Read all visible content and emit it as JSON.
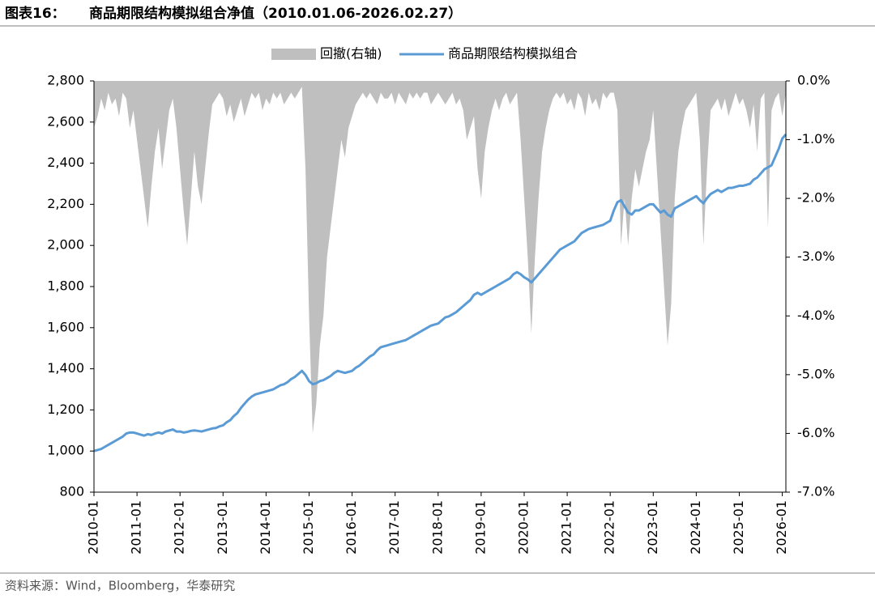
{
  "chart_data": {
    "type": "line-area",
    "title_label": "图表16：",
    "title": "商品期限结构模拟组合净值（2010.01.06-2026.02.27）",
    "source": "资料来源：Wind，Bloomberg，华泰研究",
    "x": [
      "2010-01",
      "2010-02",
      "2010-03",
      "2010-04",
      "2010-05",
      "2010-06",
      "2010-07",
      "2010-08",
      "2010-09",
      "2010-10",
      "2010-11",
      "2010-12",
      "2011-01",
      "2011-02",
      "2011-03",
      "2011-04",
      "2011-05",
      "2011-06",
      "2011-07",
      "2011-08",
      "2011-09",
      "2011-10",
      "2011-11",
      "2011-12",
      "2012-01",
      "2012-02",
      "2012-03",
      "2012-04",
      "2012-05",
      "2012-06",
      "2012-07",
      "2012-08",
      "2012-09",
      "2012-10",
      "2012-11",
      "2012-12",
      "2013-01",
      "2013-02",
      "2013-03",
      "2013-04",
      "2013-05",
      "2013-06",
      "2013-07",
      "2013-08",
      "2013-09",
      "2013-10",
      "2013-11",
      "2013-12",
      "2014-01",
      "2014-02",
      "2014-03",
      "2014-04",
      "2014-05",
      "2014-06",
      "2014-07",
      "2014-08",
      "2014-09",
      "2014-10",
      "2014-11",
      "2014-12",
      "2015-01",
      "2015-02",
      "2015-03",
      "2015-04",
      "2015-05",
      "2015-06",
      "2015-07",
      "2015-08",
      "2015-09",
      "2015-10",
      "2015-11",
      "2015-12",
      "2016-01",
      "2016-02",
      "2016-03",
      "2016-04",
      "2016-05",
      "2016-06",
      "2016-07",
      "2016-08",
      "2016-09",
      "2016-10",
      "2016-11",
      "2016-12",
      "2017-01",
      "2017-02",
      "2017-03",
      "2017-04",
      "2017-05",
      "2017-06",
      "2017-07",
      "2017-08",
      "2017-09",
      "2017-10",
      "2017-11",
      "2017-12",
      "2018-01",
      "2018-02",
      "2018-03",
      "2018-04",
      "2018-05",
      "2018-06",
      "2018-07",
      "2018-08",
      "2018-09",
      "2018-10",
      "2018-11",
      "2018-12",
      "2019-01",
      "2019-02",
      "2019-03",
      "2019-04",
      "2019-05",
      "2019-06",
      "2019-07",
      "2019-08",
      "2019-09",
      "2019-10",
      "2019-11",
      "2019-12",
      "2020-01",
      "2020-02",
      "2020-03",
      "2020-04",
      "2020-05",
      "2020-06",
      "2020-07",
      "2020-08",
      "2020-09",
      "2020-10",
      "2020-11",
      "2020-12",
      "2021-01",
      "2021-02",
      "2021-03",
      "2021-04",
      "2021-05",
      "2021-06",
      "2021-07",
      "2021-08",
      "2021-09",
      "2021-10",
      "2021-11",
      "2021-12",
      "2022-01",
      "2022-02",
      "2022-03",
      "2022-04",
      "2022-05",
      "2022-06",
      "2022-07",
      "2022-08",
      "2022-09",
      "2022-10",
      "2022-11",
      "2022-12",
      "2023-01",
      "2023-02",
      "2023-03",
      "2023-04",
      "2023-05",
      "2023-06",
      "2023-07",
      "2023-08",
      "2023-09",
      "2023-10",
      "2023-11",
      "2023-12",
      "2024-01",
      "2024-02",
      "2024-03",
      "2024-04",
      "2024-05",
      "2024-06",
      "2024-07",
      "2024-08",
      "2024-09",
      "2024-10",
      "2024-11",
      "2024-12",
      "2025-01",
      "2025-02",
      "2025-03",
      "2025-04",
      "2025-05",
      "2025-06",
      "2025-07",
      "2025-08",
      "2025-09",
      "2025-10",
      "2025-11",
      "2025-12",
      "2026-01",
      "2026-02"
    ],
    "xlim": [
      "2010-01",
      "2026-02"
    ],
    "xticks": [
      "2010-01",
      "2011-01",
      "2012-01",
      "2013-01",
      "2014-01",
      "2015-01",
      "2016-01",
      "2017-01",
      "2018-01",
      "2019-01",
      "2020-01",
      "2021-01",
      "2022-01",
      "2023-01",
      "2024-01",
      "2025-01",
      "2026-01"
    ],
    "series": [
      {
        "name": "回撤(右轴)",
        "type": "area",
        "axis": "y2",
        "color": "#bfbfbf",
        "values": [
          -0.8,
          -0.6,
          -0.3,
          -0.5,
          -0.2,
          -0.4,
          -0.3,
          -0.6,
          -0.2,
          -0.3,
          -0.8,
          -0.5,
          -1.0,
          -1.5,
          -2.0,
          -2.5,
          -1.8,
          -1.2,
          -0.8,
          -1.5,
          -1.0,
          -0.5,
          -0.3,
          -0.8,
          -1.5,
          -2.2,
          -2.8,
          -2.0,
          -1.2,
          -1.8,
          -2.1,
          -1.5,
          -0.9,
          -0.4,
          -0.3,
          -0.2,
          -0.3,
          -0.6,
          -0.4,
          -0.7,
          -0.5,
          -0.3,
          -0.6,
          -0.4,
          -0.2,
          -0.3,
          -0.2,
          -0.5,
          -0.3,
          -0.4,
          -0.2,
          -0.3,
          -0.2,
          -0.4,
          -0.3,
          -0.2,
          -0.3,
          -0.2,
          -0.1,
          -1.5,
          -4.0,
          -6.0,
          -5.5,
          -4.5,
          -4.0,
          -3.0,
          -2.5,
          -2.0,
          -1.5,
          -1.0,
          -1.3,
          -0.8,
          -0.6,
          -0.4,
          -0.3,
          -0.2,
          -0.3,
          -0.2,
          -0.3,
          -0.4,
          -0.2,
          -0.3,
          -0.3,
          -0.2,
          -0.4,
          -0.2,
          -0.3,
          -0.4,
          -0.2,
          -0.3,
          -0.2,
          -0.3,
          -0.2,
          -0.2,
          -0.4,
          -0.3,
          -0.2,
          -0.3,
          -0.4,
          -0.3,
          -0.2,
          -0.4,
          -0.3,
          -0.5,
          -1.0,
          -0.8,
          -0.6,
          -1.5,
          -2.0,
          -1.2,
          -0.8,
          -0.5,
          -0.3,
          -0.5,
          -0.3,
          -0.2,
          -0.4,
          -0.3,
          -0.2,
          -1.0,
          -2.0,
          -3.0,
          -4.3,
          -3.0,
          -2.0,
          -1.2,
          -0.8,
          -0.5,
          -0.3,
          -0.2,
          -0.3,
          -0.2,
          -0.4,
          -0.3,
          -0.5,
          -0.2,
          -0.3,
          -0.6,
          -0.2,
          -0.4,
          -0.3,
          -0.5,
          -0.2,
          -0.3,
          -0.2,
          -0.2,
          -0.5,
          -2.8,
          -2.0,
          -2.8,
          -2.0,
          -1.5,
          -1.8,
          -1.5,
          -1.2,
          -1.0,
          -0.5,
          -1.5,
          -2.5,
          -3.5,
          -4.5,
          -3.8,
          -2.0,
          -1.2,
          -0.8,
          -0.5,
          -0.4,
          -0.3,
          -0.2,
          -1.0,
          -2.8,
          -1.5,
          -0.5,
          -0.4,
          -0.3,
          -0.5,
          -0.3,
          -0.6,
          -0.4,
          -0.2,
          -0.4,
          -0.3,
          -0.5,
          -0.8,
          -0.4,
          -1.2,
          -0.3,
          -0.2,
          -2.5,
          -0.5,
          -0.3,
          -0.2,
          -0.6,
          -0.2
        ]
      },
      {
        "name": "商品期限结构模拟组合",
        "type": "line",
        "color": "#5b9bd5",
        "values": [
          1000,
          1005,
          1010,
          1020,
          1030,
          1040,
          1050,
          1060,
          1070,
          1085,
          1090,
          1090,
          1085,
          1080,
          1075,
          1082,
          1078,
          1085,
          1090,
          1085,
          1095,
          1100,
          1105,
          1095,
          1095,
          1090,
          1093,
          1098,
          1100,
          1098,
          1095,
          1100,
          1105,
          1110,
          1112,
          1120,
          1125,
          1140,
          1150,
          1170,
          1185,
          1210,
          1230,
          1250,
          1265,
          1275,
          1280,
          1285,
          1290,
          1295,
          1300,
          1310,
          1320,
          1325,
          1335,
          1350,
          1360,
          1375,
          1390,
          1370,
          1340,
          1325,
          1330,
          1340,
          1345,
          1355,
          1365,
          1380,
          1390,
          1385,
          1380,
          1385,
          1390,
          1405,
          1415,
          1430,
          1445,
          1460,
          1470,
          1490,
          1505,
          1510,
          1515,
          1520,
          1525,
          1530,
          1535,
          1540,
          1550,
          1560,
          1570,
          1580,
          1590,
          1600,
          1610,
          1615,
          1620,
          1635,
          1650,
          1655,
          1665,
          1675,
          1690,
          1705,
          1720,
          1735,
          1760,
          1770,
          1760,
          1770,
          1780,
          1790,
          1800,
          1810,
          1820,
          1830,
          1840,
          1860,
          1870,
          1860,
          1845,
          1835,
          1820,
          1840,
          1860,
          1880,
          1900,
          1920,
          1940,
          1960,
          1980,
          1990,
          2000,
          2010,
          2020,
          2040,
          2060,
          2070,
          2080,
          2085,
          2090,
          2095,
          2100,
          2110,
          2120,
          2170,
          2210,
          2220,
          2190,
          2160,
          2150,
          2170,
          2170,
          2180,
          2190,
          2200,
          2200,
          2180,
          2160,
          2170,
          2150,
          2140,
          2180,
          2190,
          2200,
          2210,
          2220,
          2230,
          2240,
          2220,
          2205,
          2230,
          2250,
          2260,
          2270,
          2260,
          2270,
          2280,
          2280,
          2285,
          2290,
          2290,
          2295,
          2300,
          2320,
          2330,
          2350,
          2370,
          2380,
          2390,
          2430,
          2470,
          2520,
          2540
        ]
      }
    ],
    "ylim": [
      800,
      2800
    ],
    "yticks": [
      800,
      {
        "value": 1000,
        "label": "1,000"
      },
      {
        "value": 1200,
        "label": "1,200"
      },
      {
        "value": 1400,
        "label": "1,400"
      },
      {
        "value": 1600,
        "label": "1,600"
      },
      {
        "value": 1800,
        "label": "1,800"
      },
      {
        "value": 2000,
        "label": "2,000"
      },
      {
        "value": 2200,
        "label": "2,200"
      },
      {
        "value": 2400,
        "label": "2,400"
      },
      {
        "value": 2600,
        "label": "2,600"
      },
      {
        "value": 2800,
        "label": "2,800"
      }
    ],
    "y2lim": [
      -7,
      0
    ],
    "y2ticks": [
      {
        "value": 0,
        "label": "0.0%"
      },
      {
        "value": -1,
        "label": "-1.0%"
      },
      {
        "value": -2,
        "label": "-2.0%"
      },
      {
        "value": -3,
        "label": "-3.0%"
      },
      {
        "value": -4,
        "label": "-4.0%"
      },
      {
        "value": -5,
        "label": "-5.0%"
      },
      {
        "value": -6,
        "label": "-6.0%"
      },
      {
        "value": -7,
        "label": "-7.0%"
      }
    ],
    "legend": "top"
  }
}
